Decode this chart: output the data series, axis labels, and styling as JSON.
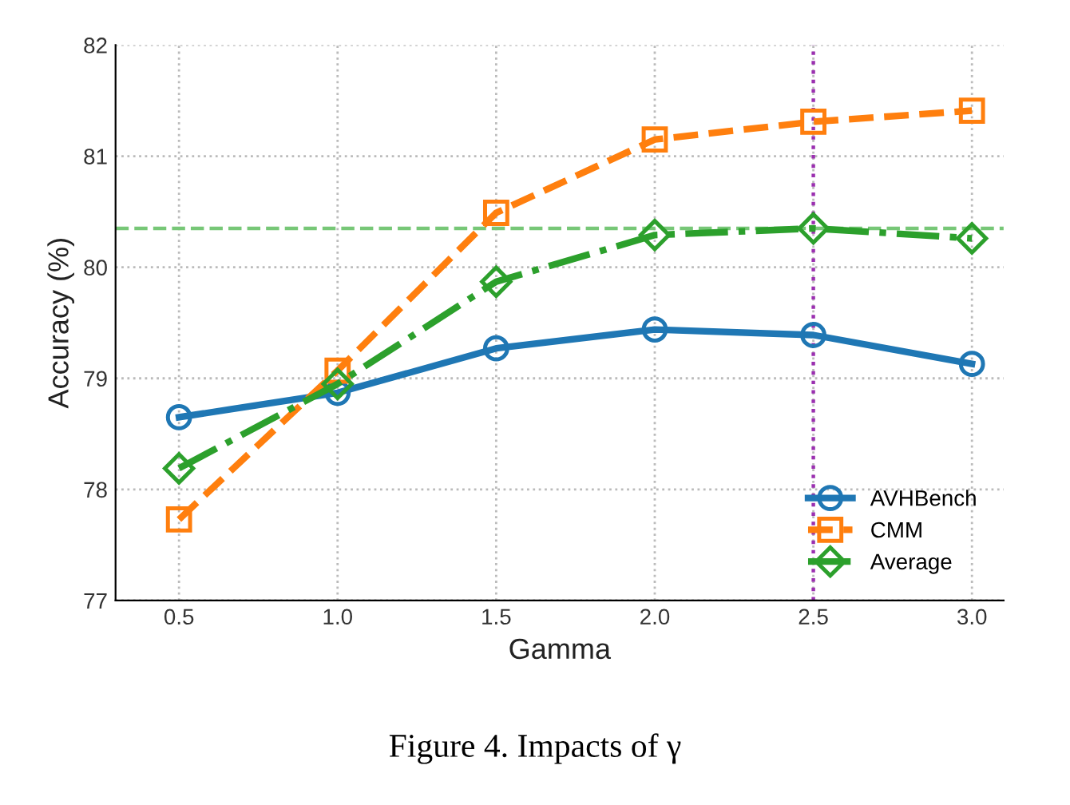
{
  "chart_data": {
    "type": "line",
    "xlabel": "Gamma",
    "ylabel": "Accuracy (%)",
    "x": [
      0.5,
      1.0,
      1.5,
      2.0,
      2.5,
      3.0
    ],
    "series": [
      {
        "name": "AVHBench",
        "color": "#1f77b4",
        "marker": "circle",
        "line_style": "solid",
        "values": [
          78.65,
          78.87,
          79.27,
          79.44,
          79.39,
          79.13
        ]
      },
      {
        "name": "CMM",
        "color": "#ff7f0e",
        "marker": "square",
        "line_style": "dashed",
        "values": [
          77.73,
          79.07,
          80.49,
          81.15,
          81.31,
          81.41
        ]
      },
      {
        "name": "Average",
        "color": "#2ca02c",
        "marker": "diamond",
        "line_style": "dashdot",
        "values": [
          78.19,
          78.95,
          79.87,
          80.29,
          80.35,
          80.26
        ]
      }
    ],
    "xlim": [
      0.3,
      3.1
    ],
    "xticks": [
      {
        "value": 0.5,
        "label": "0.5"
      },
      {
        "value": 1.0,
        "label": "1.0"
      },
      {
        "value": 1.5,
        "label": "1.5"
      },
      {
        "value": 2.0,
        "label": "2.0"
      },
      {
        "value": 2.5,
        "label": "2.5"
      },
      {
        "value": 3.0,
        "label": "3.0"
      }
    ],
    "ylim": [
      77,
      82
    ],
    "yticks": [
      77,
      78,
      79,
      80,
      81,
      82
    ],
    "ref_lines": [
      {
        "axis": "y",
        "value": 80.35,
        "color": "#77c777",
        "line_style": "dashed"
      },
      {
        "axis": "x",
        "value": 2.5,
        "color": "#9b30b0",
        "line_style": "dotted"
      }
    ],
    "grid": true,
    "legend": "bottom right",
    "annotations": [
      "Figure 4. Impacts of γ"
    ]
  }
}
